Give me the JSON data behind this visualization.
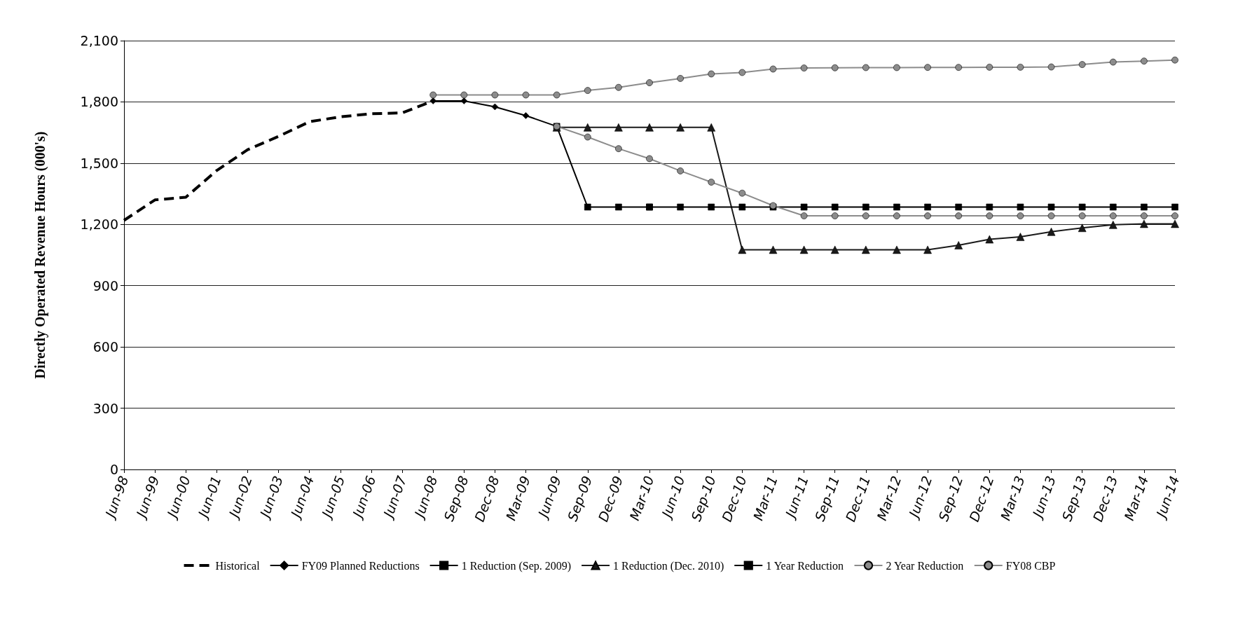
{
  "chart_data": {
    "type": "line",
    "ylabel": "Directly Operated Revenue Hours (000's)",
    "categories": [
      "Jun-98",
      "Jun-99",
      "Jun-00",
      "Jun-01",
      "Jun-02",
      "Jun-03",
      "Jun-04",
      "Jun-05",
      "Jun-06",
      "Jun-07",
      "Jun-08",
      "Sep-08",
      "Dec-08",
      "Mar-09",
      "Jun-09",
      "Sep-09",
      "Dec-09",
      "Mar-10",
      "Jun-10",
      "Sep-10",
      "Dec-10",
      "Mar-11",
      "Jun-11",
      "Sep-11",
      "Dec-11",
      "Mar-12",
      "Jun-12",
      "Sep-12",
      "Dec-12",
      "Mar-13",
      "Jun-13",
      "Sep-13",
      "Dec-13",
      "Mar-14",
      "Jun-14"
    ],
    "ylim": [
      0,
      2100
    ],
    "yticks": [
      0,
      300,
      600,
      900,
      {
        "value": 1200,
        "label": "1,200"
      },
      {
        "value": 1500,
        "label": "1,500"
      },
      {
        "value": 1800,
        "label": "1,800"
      },
      {
        "value": 2100,
        "label": "2,100"
      }
    ],
    "grid": "y",
    "legend": "bottom",
    "series": [
      {
        "name": "Historical",
        "color": "#000000",
        "line_style": "dashed",
        "marker": "none",
        "values": [
          1220,
          1320,
          1333,
          1464,
          1566,
          1631,
          1703,
          1727,
          1742,
          1746,
          1805,
          null,
          null,
          null,
          null,
          null,
          null,
          null,
          null,
          null,
          null,
          null,
          null,
          null,
          null,
          null,
          null,
          null,
          null,
          null,
          null,
          null,
          null,
          null,
          null
        ]
      },
      {
        "name": "FY09 Planned Reductions",
        "color": "#000000",
        "marker": "diamond",
        "values": [
          null,
          null,
          null,
          null,
          null,
          null,
          null,
          null,
          null,
          null,
          1805,
          1805,
          1776,
          1733,
          1680,
          null,
          null,
          null,
          null,
          null,
          null,
          null,
          null,
          null,
          null,
          null,
          null,
          null,
          null,
          null,
          null,
          null,
          null,
          null,
          null
        ]
      },
      {
        "name": "1 Reduction (Sep. 2009)",
        "color": "#000000",
        "marker": "square",
        "values": [
          null,
          null,
          null,
          null,
          null,
          null,
          null,
          null,
          null,
          null,
          null,
          null,
          null,
          null,
          1680,
          1285,
          1285,
          1285,
          null,
          null,
          null,
          null,
          null,
          null,
          null,
          null,
          null,
          null,
          null,
          null,
          null,
          null,
          null,
          null,
          null
        ]
      },
      {
        "name": "1 Reduction (Dec. 2010)",
        "color": "#1a1a1a",
        "marker": "triangle",
        "values": [
          null,
          null,
          null,
          null,
          null,
          null,
          null,
          null,
          null,
          null,
          null,
          null,
          null,
          null,
          1675,
          1675,
          1675,
          1675,
          1675,
          1675,
          1076,
          1076,
          1076,
          1076,
          1076,
          1076,
          1076,
          1098,
          1127,
          1139,
          1164,
          1183,
          1198,
          1203,
          1203
        ]
      },
      {
        "name": "1 Year Reduction",
        "color": "#000000",
        "marker": "square",
        "values": [
          null,
          null,
          null,
          null,
          null,
          null,
          null,
          null,
          null,
          null,
          null,
          null,
          null,
          null,
          null,
          null,
          null,
          1285,
          1285,
          1285,
          1285,
          1285,
          1285,
          1285,
          1285,
          1285,
          1285,
          1285,
          1285,
          1285,
          1285,
          1285,
          1285,
          1285,
          1285
        ]
      },
      {
        "name": "2 Year Reduction",
        "color": "#8c8c8c",
        "marker": "circle",
        "values": [
          null,
          null,
          null,
          null,
          null,
          null,
          null,
          null,
          null,
          null,
          null,
          null,
          null,
          null,
          1680,
          1628,
          1571,
          1522,
          1462,
          1407,
          1353,
          1292,
          1242,
          1242,
          1242,
          1242,
          1242,
          1242,
          1242,
          1242,
          1242,
          1242,
          1242,
          1242,
          1242
        ]
      },
      {
        "name": "FY08 CBP",
        "color": "#8c8c8c",
        "marker": "circle",
        "values": [
          null,
          null,
          null,
          null,
          null,
          null,
          null,
          null,
          null,
          null,
          1834,
          1834,
          1834,
          1834,
          1834,
          1856,
          1871,
          1894,
          1915,
          1937,
          1944,
          1961,
          1966,
          1967,
          1968,
          1968,
          1969,
          1969,
          1970,
          1970,
          1971,
          1983,
          1995,
          2000,
          2005
        ]
      }
    ]
  }
}
